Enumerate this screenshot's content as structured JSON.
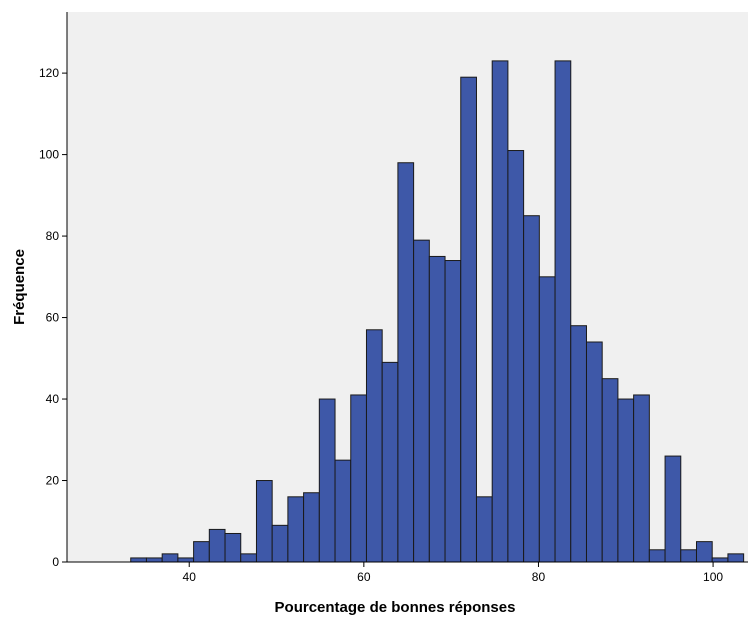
{
  "chart_data": {
    "type": "bar",
    "title": "",
    "xlabel": "Pourcentage de bonnes réponses",
    "ylabel": "Fréquence",
    "xlim": [
      26,
      104
    ],
    "ylim": [
      0,
      135
    ],
    "x_ticks": [
      40,
      60,
      80,
      100
    ],
    "y_ticks": [
      0,
      20,
      40,
      60,
      80,
      100,
      120
    ],
    "bin_width": 1.8,
    "bins": [
      {
        "start": 33.3,
        "value": 1
      },
      {
        "start": 35.1,
        "value": 1
      },
      {
        "start": 36.9,
        "value": 2
      },
      {
        "start": 38.7,
        "value": 1
      },
      {
        "start": 40.5,
        "value": 5
      },
      {
        "start": 42.3,
        "value": 8
      },
      {
        "start": 44.1,
        "value": 7
      },
      {
        "start": 45.9,
        "value": 2
      },
      {
        "start": 47.7,
        "value": 20
      },
      {
        "start": 49.5,
        "value": 9
      },
      {
        "start": 51.3,
        "value": 16
      },
      {
        "start": 53.1,
        "value": 17
      },
      {
        "start": 54.9,
        "value": 40
      },
      {
        "start": 56.7,
        "value": 25
      },
      {
        "start": 58.5,
        "value": 41
      },
      {
        "start": 60.3,
        "value": 57
      },
      {
        "start": 62.1,
        "value": 49
      },
      {
        "start": 63.9,
        "value": 98
      },
      {
        "start": 65.7,
        "value": 79
      },
      {
        "start": 67.5,
        "value": 75
      },
      {
        "start": 69.3,
        "value": 74
      },
      {
        "start": 71.1,
        "value": 119
      },
      {
        "start": 72.9,
        "value": 16
      },
      {
        "start": 74.7,
        "value": 123
      },
      {
        "start": 76.5,
        "value": 101
      },
      {
        "start": 78.3,
        "value": 85
      },
      {
        "start": 80.1,
        "value": 70
      },
      {
        "start": 81.9,
        "value": 123
      },
      {
        "start": 83.7,
        "value": 58
      },
      {
        "start": 85.5,
        "value": 54
      },
      {
        "start": 87.3,
        "value": 45
      },
      {
        "start": 89.1,
        "value": 40
      },
      {
        "start": 90.9,
        "value": 41
      },
      {
        "start": 92.7,
        "value": 3
      },
      {
        "start": 94.5,
        "value": 26
      },
      {
        "start": 96.3,
        "value": 3
      },
      {
        "start": 98.1,
        "value": 5
      },
      {
        "start": 99.9,
        "value": 1
      },
      {
        "start": 101.7,
        "value": 2
      }
    ],
    "grid": false,
    "legend": "none",
    "colors": {
      "plot_background": "#f0f0f0",
      "bar_fill": "#3e58a8",
      "bar_stroke": "#1a1a1a",
      "axis": "#000000"
    }
  }
}
